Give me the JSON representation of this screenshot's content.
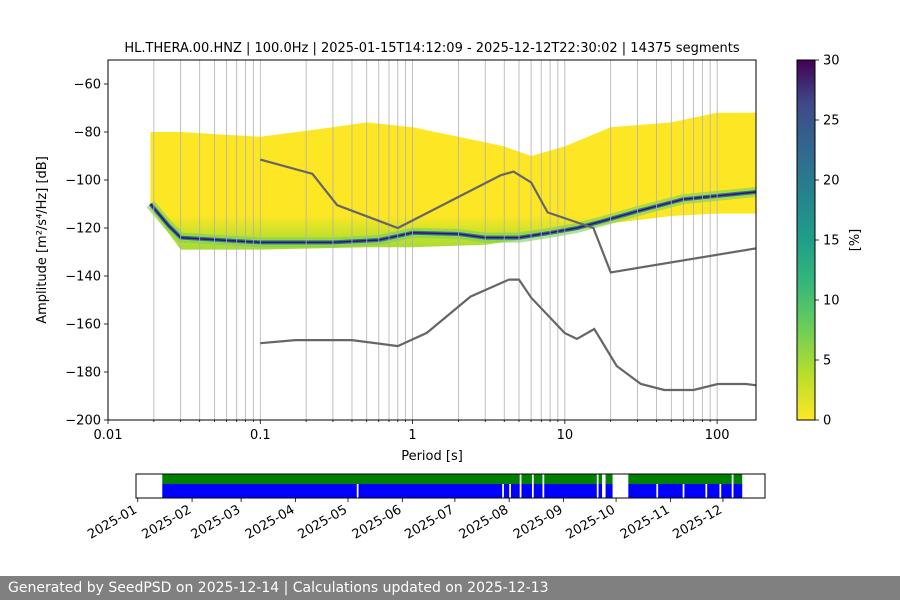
{
  "chart_data": [
    {
      "type": "heatmap",
      "title": "HL.THERA.00.HNZ | 100.0Hz | 2025-01-15T14:12:09 - 2025-12-12T22:30:02 | 14375 segments",
      "xlabel": "Period [s]",
      "ylabel": "Amplitude [m²/s⁴/Hz] [dB]",
      "xscale": "log",
      "xlim": [
        0.01,
        180
      ],
      "ylim": [
        -200,
        -50
      ],
      "xticks": [
        "0.01",
        "0.1",
        "1",
        "10",
        "100"
      ],
      "yticks": [
        "−60",
        "−80",
        "−100",
        "−120",
        "−140",
        "−160",
        "−180",
        "−200"
      ],
      "grid": "x",
      "colorbar": {
        "label": "[%]",
        "min": 0,
        "max": 30,
        "ticks": [
          "0",
          "5",
          "10",
          "15",
          "20",
          "25",
          "30"
        ],
        "colormap": "viridis_r"
      },
      "series": [
        {
          "name": "",
          "x": [
            0.1,
            0.22,
            0.32,
            0.8,
            3.8,
            4.6,
            6.0,
            7.7,
            15.4,
            20,
            200
          ],
          "y": [
            -91.5,
            -97.4,
            -110.5,
            -120.0,
            -98.0,
            -96.5,
            -101.0,
            -113.5,
            -120.0,
            -138.5,
            -128.0
          ]
        },
        {
          "name": "",
          "x": [
            0.1,
            0.17,
            0.4,
            0.8,
            1.24,
            2.4,
            4.3,
            5.0,
            6.0,
            10,
            12,
            15.6,
            21.9,
            31.6,
            45,
            70,
            101,
            154,
            179
          ],
          "y": [
            -168.0,
            -166.7,
            -166.7,
            -169.2,
            -163.7,
            -148.6,
            -141.5,
            -141.5,
            -149.0,
            -163.8,
            -166.2,
            -162.1,
            -177.5,
            -185.0,
            -187.5,
            -187.5,
            -185.0,
            -185.0,
            -185.5
          ]
        }
      ],
      "noise_band": {
        "upper": [
          [
            0.019,
            -80
          ],
          [
            0.03,
            -80
          ],
          [
            0.1,
            -82
          ],
          [
            0.3,
            -78
          ],
          [
            0.5,
            -76
          ],
          [
            1,
            -78
          ],
          [
            2,
            -82
          ],
          [
            4,
            -86
          ],
          [
            6,
            -90
          ],
          [
            10,
            -86
          ],
          [
            20,
            -78
          ],
          [
            50,
            -76
          ],
          [
            100,
            -72
          ],
          [
            180,
            -72
          ]
        ],
        "lower": [
          [
            0.019,
            -112
          ],
          [
            0.03,
            -129
          ],
          [
            0.1,
            -129
          ],
          [
            0.5,
            -128
          ],
          [
            1,
            -128
          ],
          [
            3,
            -127
          ],
          [
            5,
            -125
          ],
          [
            10,
            -122
          ],
          [
            20,
            -118
          ],
          [
            50,
            -115
          ],
          [
            100,
            -114
          ],
          [
            180,
            -114
          ]
        ],
        "mode": [
          [
            0.019,
            -110
          ],
          [
            0.025,
            -119
          ],
          [
            0.03,
            -124
          ],
          [
            0.1,
            -126
          ],
          [
            0.3,
            -126
          ],
          [
            0.6,
            -125
          ],
          [
            1,
            -122
          ],
          [
            2,
            -122.5
          ],
          [
            3,
            -124
          ],
          [
            5,
            -124
          ],
          [
            8,
            -122
          ],
          [
            12,
            -120
          ],
          [
            18,
            -117
          ],
          [
            30,
            -113
          ],
          [
            60,
            -108
          ],
          [
            180,
            -105
          ]
        ]
      }
    },
    {
      "type": "timeline",
      "xticks": [
        "2025-01",
        "2025-02",
        "2025-03",
        "2025-04",
        "2025-05",
        "2025-06",
        "2025-07",
        "2025-08",
        "2025-09",
        "2025-10",
        "2025-11",
        "2025-12"
      ],
      "xlim": [
        "2024-12-31",
        "2025-12-25"
      ],
      "data_start": "2025-01-15",
      "data_end": "2025-12-12",
      "top_color": "#008000",
      "bottom_color": "#0000ff",
      "gaps": [
        [
          "2025-08-07",
          "2025-08-08"
        ],
        [
          "2025-08-14",
          "2025-08-15"
        ],
        [
          "2025-08-20",
          "2025-08-21"
        ],
        [
          "2025-09-20",
          "2025-09-21"
        ],
        [
          "2025-09-23",
          "2025-09-25"
        ],
        [
          "2025-09-29",
          "2025-10-08"
        ],
        [
          "2025-12-06",
          "2025-12-07"
        ]
      ],
      "partial_gaps": [
        [
          "2025-05-06",
          "2025-05-07"
        ],
        [
          "2025-07-28",
          "2025-07-29"
        ],
        [
          "2025-08-01",
          "2025-08-02"
        ],
        [
          "2025-10-24",
          "2025-10-25"
        ],
        [
          "2025-11-08",
          "2025-11-09"
        ],
        [
          "2025-11-21",
          "2025-11-22"
        ],
        [
          "2025-11-29",
          "2025-11-30"
        ]
      ]
    }
  ],
  "footer": {
    "text": "Generated by SeedPSD on 2025-12-14 | Calculations updated on 2025-12-13"
  }
}
